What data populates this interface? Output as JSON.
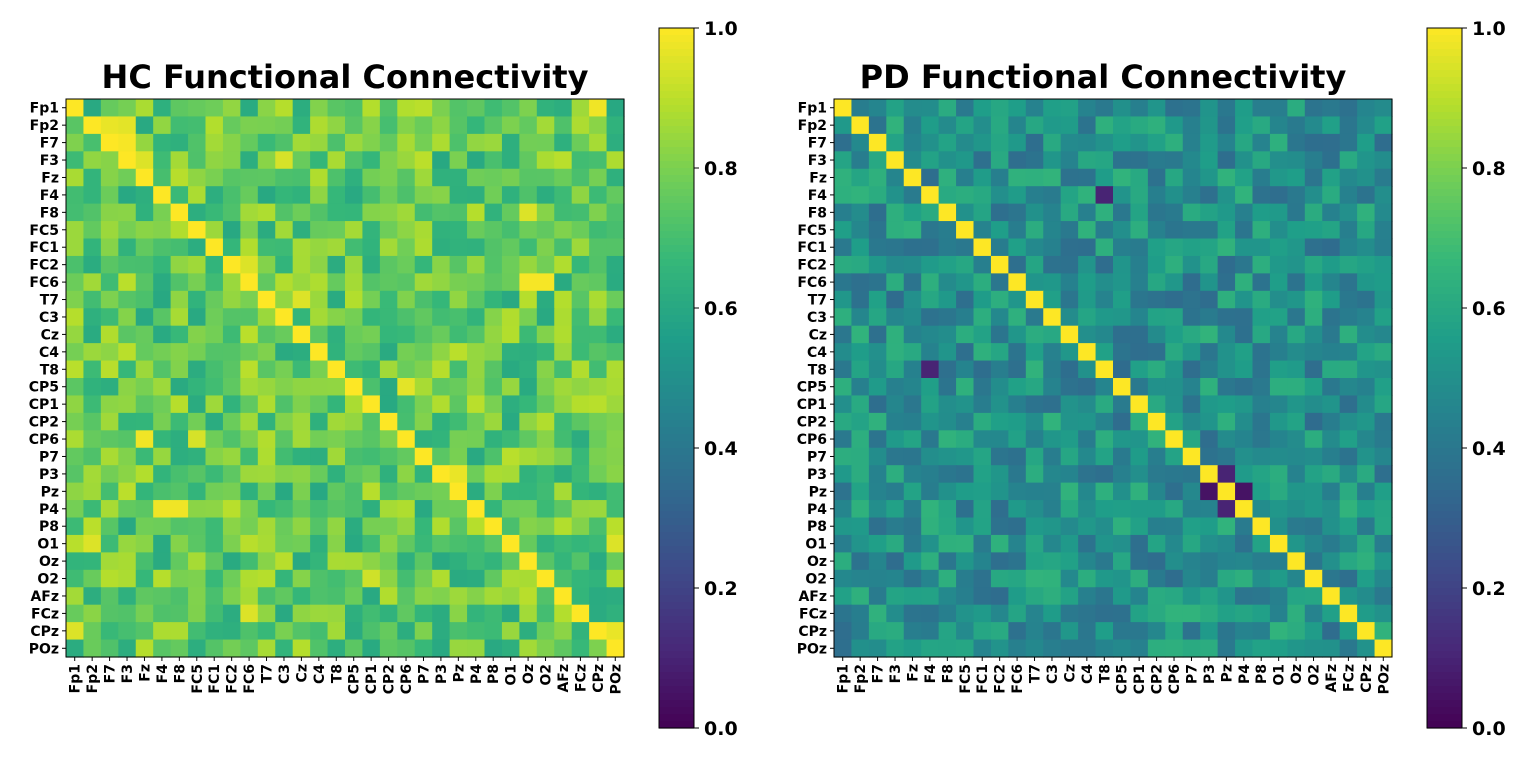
{
  "chart_data": [
    {
      "type": "heatmap",
      "title": "HC Functional Connectivity",
      "channels": [
        "Fp1",
        "Fp2",
        "F7",
        "F3",
        "Fz",
        "F4",
        "F8",
        "FC5",
        "FC1",
        "FC2",
        "FC6",
        "T7",
        "C3",
        "Cz",
        "C4",
        "T8",
        "CP5",
        "CP1",
        "CP2",
        "CP6",
        "P7",
        "P3",
        "Pz",
        "P4",
        "P8",
        "O1",
        "Oz",
        "O2",
        "AFz",
        "FCz",
        "CPz",
        "POz"
      ],
      "colormap": "viridis",
      "vmin": 0.0,
      "vmax": 1.0,
      "colorbar_ticks": [
        "0.0",
        "0.2",
        "0.4",
        "0.6",
        "0.8",
        "1.0"
      ],
      "diagonal": 1.0,
      "highlights": [
        {
          "row": "Fp1",
          "col": "CPz",
          "value": 0.98
        },
        {
          "row": "Fp2",
          "col": "F7",
          "value": 0.97
        },
        {
          "row": "Fp2",
          "col": "F3",
          "value": 0.96
        },
        {
          "row": "F7",
          "col": "F3",
          "value": 0.99
        },
        {
          "row": "F3",
          "col": "Fz",
          "value": 0.95
        },
        {
          "row": "F3",
          "col": "C3",
          "value": 0.94
        },
        {
          "row": "F8",
          "col": "Oz",
          "value": 0.95
        },
        {
          "row": "FC2",
          "col": "FC6",
          "value": 0.95
        },
        {
          "row": "FC6",
          "col": "Oz",
          "value": 0.99
        },
        {
          "row": "FC6",
          "col": "O2",
          "value": 0.99
        },
        {
          "row": "T7",
          "col": "Cz",
          "value": 0.95
        },
        {
          "row": "CP5",
          "col": "CP6",
          "value": 0.96
        },
        {
          "row": "CP6",
          "col": "Fz",
          "value": 0.98
        },
        {
          "row": "CP6",
          "col": "FC5",
          "value": 0.94
        },
        {
          "row": "P3",
          "col": "Pz",
          "value": 0.97
        },
        {
          "row": "P4",
          "col": "F4",
          "value": 0.98
        },
        {
          "row": "P4",
          "col": "F8",
          "value": 0.98
        },
        {
          "row": "O1",
          "col": "Fp2",
          "value": 0.95
        },
        {
          "row": "O1",
          "col": "POz",
          "value": 0.95
        },
        {
          "row": "O2",
          "col": "CP1",
          "value": 0.93
        },
        {
          "row": "FCz",
          "col": "FC6",
          "value": 0.95
        },
        {
          "row": "CPz",
          "col": "Fp1",
          "value": 0.95
        },
        {
          "row": "CPz",
          "col": "POz",
          "value": 0.97
        }
      ],
      "typical_range": [
        0.6,
        0.9
      ]
    },
    {
      "type": "heatmap",
      "title": "PD Functional Connectivity",
      "channels": [
        "Fp1",
        "Fp2",
        "F7",
        "F3",
        "Fz",
        "F4",
        "F8",
        "FC5",
        "FC1",
        "FC2",
        "FC6",
        "T7",
        "C3",
        "Cz",
        "C4",
        "T8",
        "CP5",
        "CP1",
        "CP2",
        "CP6",
        "P7",
        "P3",
        "Pz",
        "P4",
        "P8",
        "O1",
        "Oz",
        "O2",
        "AFz",
        "FCz",
        "CPz",
        "POz"
      ],
      "colormap": "viridis",
      "vmin": 0.0,
      "vmax": 1.0,
      "colorbar_ticks": [
        "0.0",
        "0.2",
        "0.4",
        "0.6",
        "0.8",
        "1.0"
      ],
      "diagonal": 1.0,
      "lows": [
        {
          "row": "F4",
          "col": "T8",
          "value": 0.1
        },
        {
          "row": "T8",
          "col": "F4",
          "value": 0.1
        },
        {
          "row": "Pz",
          "col": "P3",
          "value": 0.05
        },
        {
          "row": "Pz",
          "col": "P4",
          "value": 0.05
        },
        {
          "row": "P3",
          "col": "Pz",
          "value": 0.1
        },
        {
          "row": "P4",
          "col": "Pz",
          "value": 0.1
        }
      ],
      "typical_range": [
        0.35,
        0.65
      ]
    }
  ]
}
